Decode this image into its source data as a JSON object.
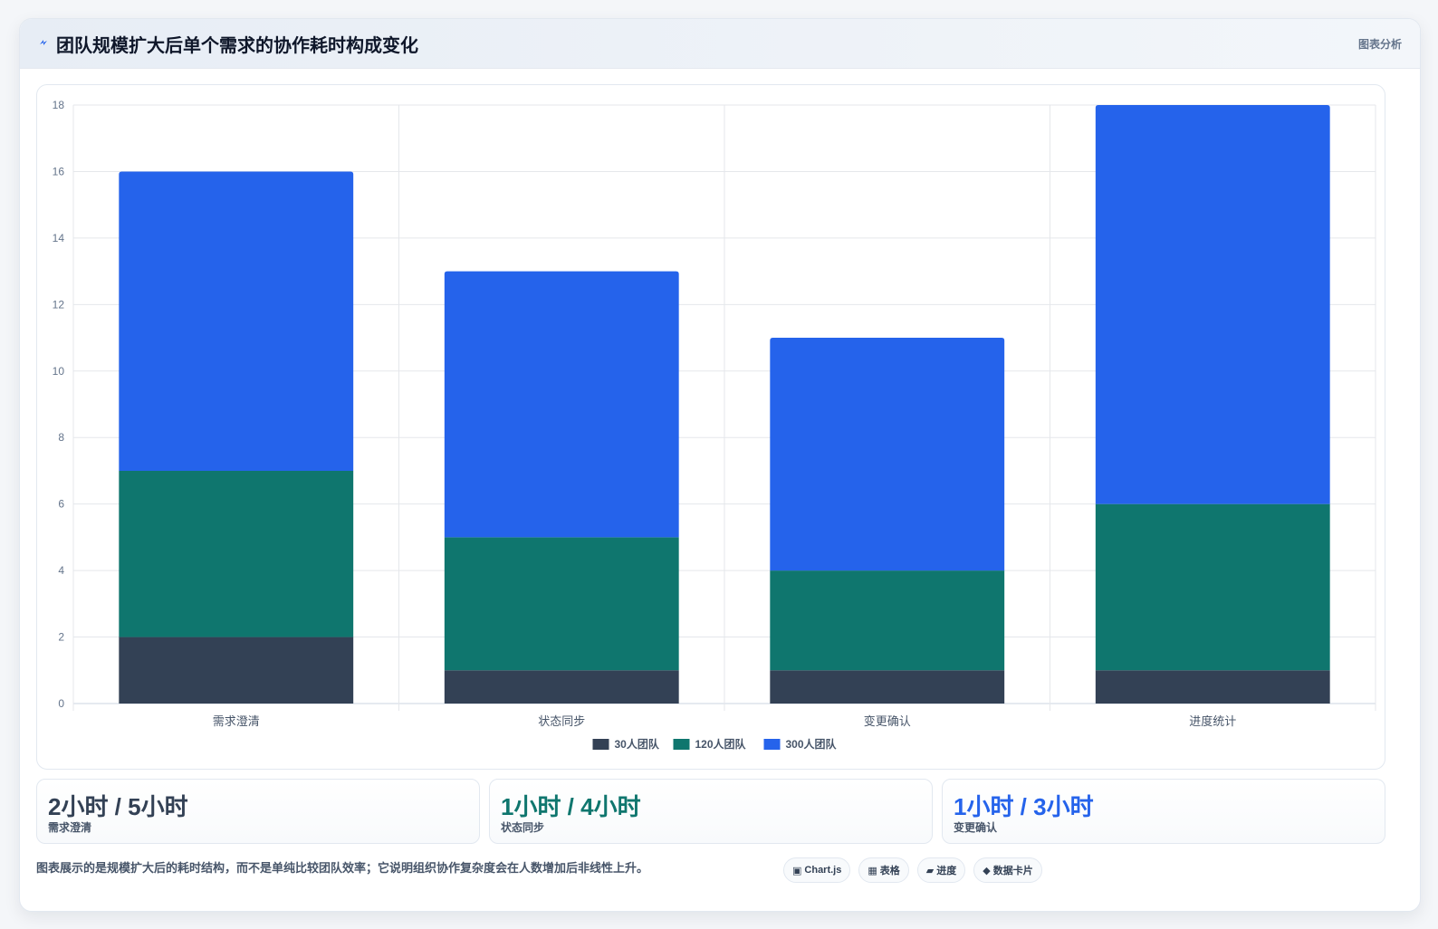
{
  "header": {
    "icon": "bolt-icon",
    "title": "团队规模扩大后单个需求的协作耗时构成变化",
    "tag": "图表分析"
  },
  "chart_data": {
    "type": "bar",
    "stacked": true,
    "categories": [
      "需求澄清",
      "状态同步",
      "变更确认",
      "进度统计"
    ],
    "series": [
      {
        "name": "30人团队",
        "color": "#334155",
        "values": [
          2,
          1,
          1,
          1
        ]
      },
      {
        "name": "120人团队",
        "color": "#0f766e",
        "values": [
          5,
          4,
          3,
          5
        ]
      },
      {
        "name": "300人团队",
        "color": "#2563eb",
        "values": [
          9,
          8,
          7,
          12
        ]
      }
    ],
    "ylim": [
      0,
      18
    ],
    "yticks": [
      0,
      2,
      4,
      6,
      8,
      10,
      12,
      14,
      16,
      18
    ],
    "grid": true,
    "legend_position": "bottom"
  },
  "stats": [
    {
      "value": "2小时 / 5小时",
      "label": "需求澄清",
      "color": "#334155"
    },
    {
      "value": "1小时 / 4小时",
      "label": "状态同步",
      "color": "#0f766e"
    },
    {
      "value": "1小时 / 3小时",
      "label": "变更确认",
      "color": "#2563eb"
    }
  ],
  "footer": {
    "note": "图表展示的是规模扩大后的耗时结构，而不是单纯比较团队效率；它说明组织协作复杂度会在人数增加后非线性上升。",
    "pills": [
      {
        "icon": "▣",
        "label": "Chart.js"
      },
      {
        "icon": "▦",
        "label": "表格"
      },
      {
        "icon": "▰",
        "label": "进度"
      },
      {
        "icon": "◆",
        "label": "数据卡片"
      }
    ]
  }
}
